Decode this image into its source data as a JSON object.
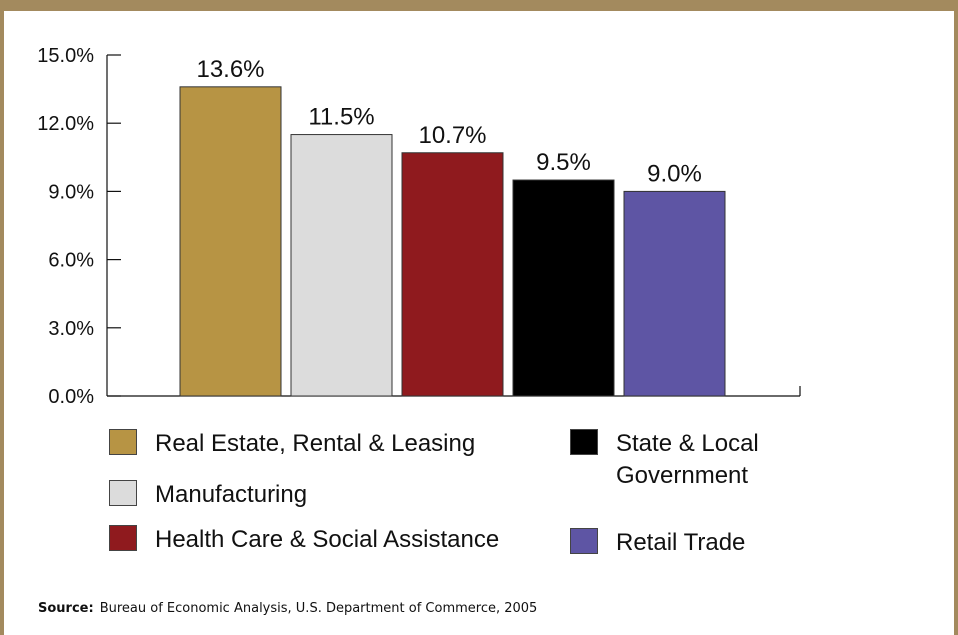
{
  "chart_data": {
    "type": "bar",
    "categories": [
      "Real Estate, Rental & Leasing",
      "Manufacturing",
      "Health Care & Social Assistance",
      "State & Local Government",
      "Retail Trade"
    ],
    "values": [
      13.6,
      11.5,
      10.7,
      9.5,
      9.0
    ],
    "value_labels": [
      "13.6%",
      "11.5%",
      "10.7%",
      "9.5%",
      "9.0%"
    ],
    "colors": [
      "#b79444",
      "#dcdcdc",
      "#8f1a1e",
      "#000000",
      "#5e55a4"
    ],
    "ylim": [
      0,
      15
    ],
    "y_ticks": [
      0,
      3,
      6,
      9,
      12,
      15
    ],
    "y_tick_labels": [
      "0.0%",
      "3.0%",
      "6.0%",
      "9.0%",
      "12.0%",
      "15.0%"
    ],
    "grid": false,
    "legend_position": "bottom"
  },
  "legend": [
    {
      "label": "Real Estate, Rental & Leasing",
      "color": "#b79444"
    },
    {
      "label": "Manufacturing",
      "color": "#dcdcdc"
    },
    {
      "label": "Health Care & Social Assistance",
      "color": "#8f1a1e"
    },
    {
      "label": "State & Local",
      "label2": "Government",
      "color": "#000000"
    },
    {
      "label": "Retail Trade",
      "color": "#5e55a4"
    }
  ],
  "source": {
    "prefix": "Source:",
    "text": "Bureau of Economic Analysis, U.S. Department of Commerce, 2005"
  },
  "frame_color": "#a38a5e"
}
